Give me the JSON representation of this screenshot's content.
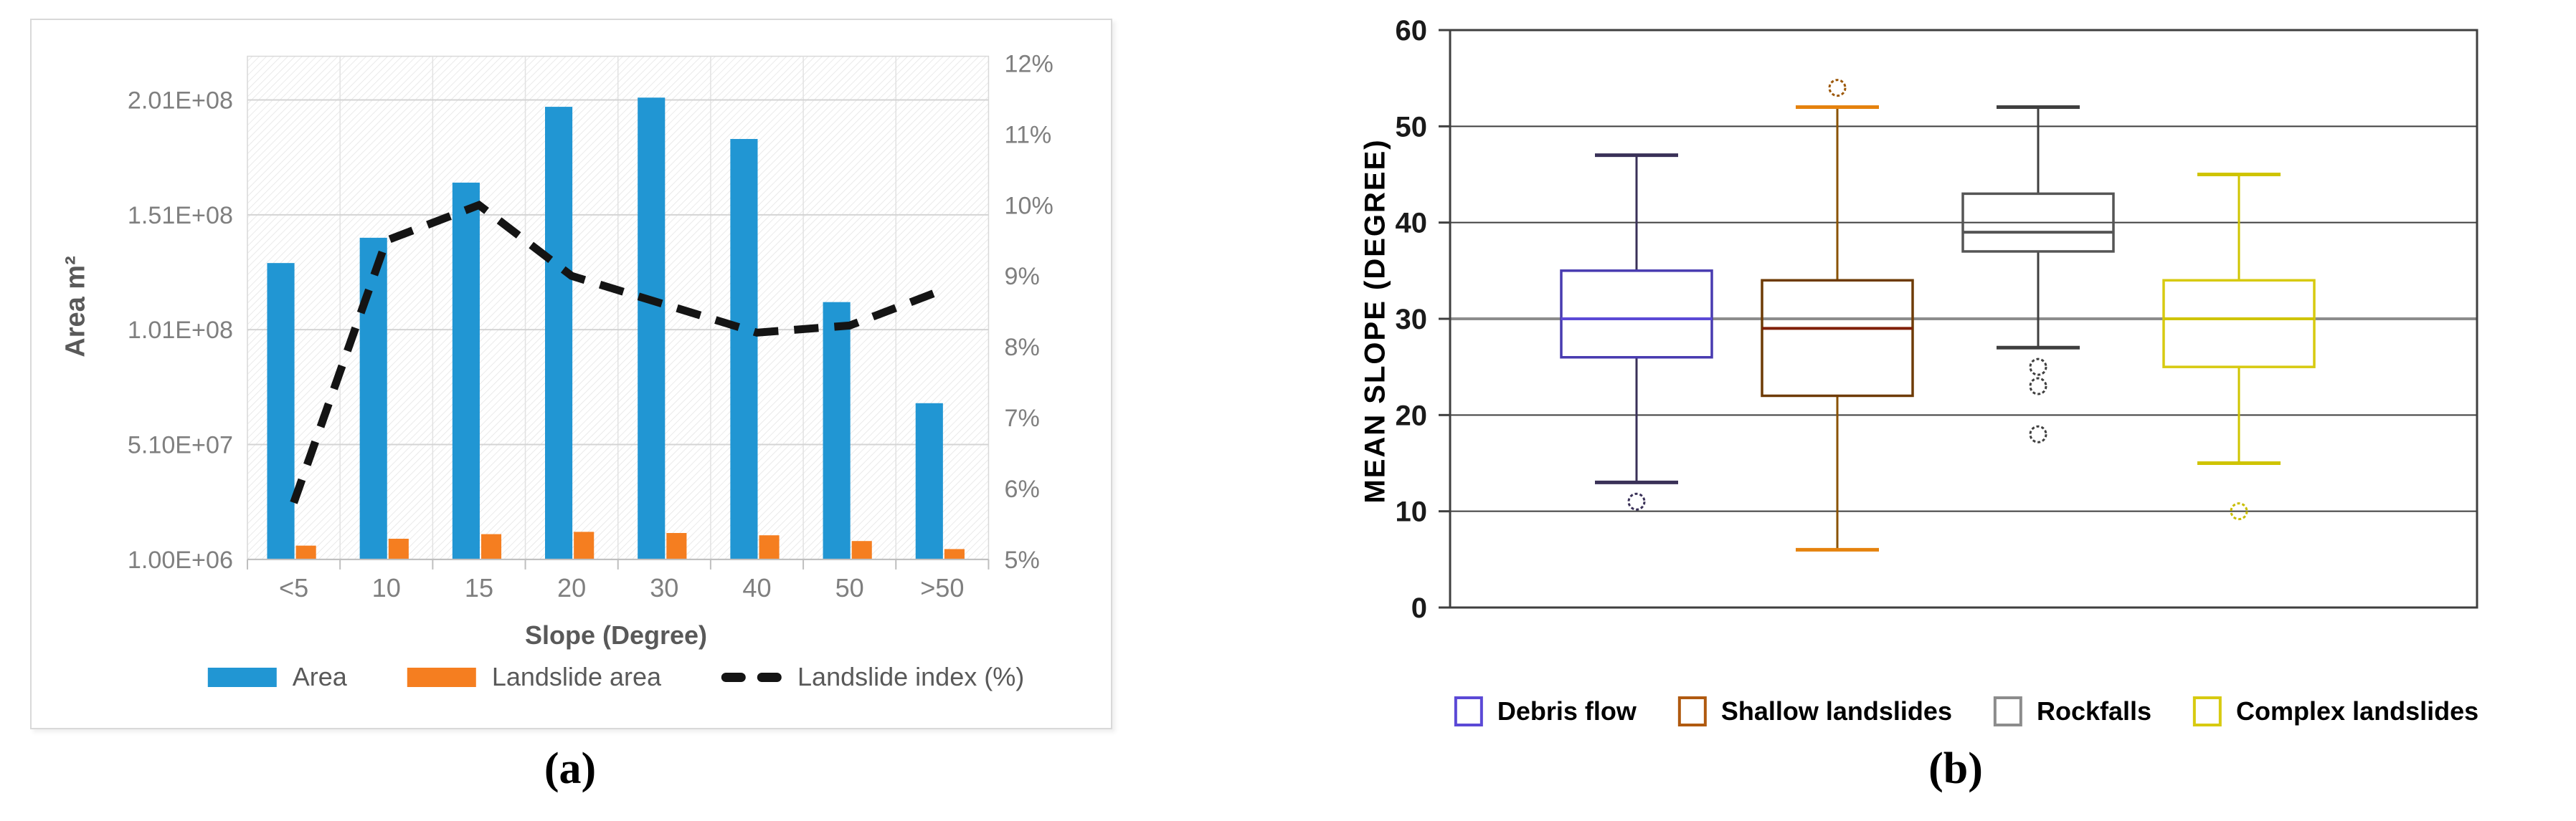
{
  "figure": {
    "caption_a": "(a)",
    "caption_b": "(b)"
  },
  "chart_data": [
    {
      "type": "bar",
      "subtype": "bar-line-combo",
      "panel": "a",
      "categories": [
        "<5",
        "10",
        "15",
        "20",
        "30",
        "40",
        "50",
        ">50"
      ],
      "series": [
        {
          "name": "Area",
          "type": "bar",
          "axis": "left",
          "color": "#2196D3",
          "values": [
            130000000,
            141000000,
            165000000,
            198000000,
            202000000,
            184000000,
            113000000,
            69000000
          ]
        },
        {
          "name": "Landslide area",
          "type": "bar",
          "axis": "left",
          "color": "#F57E20",
          "values": [
            7000000,
            10000000,
            12000000,
            13000000,
            12500000,
            11500000,
            9000000,
            5500000
          ]
        },
        {
          "name": "Landslide index (%)",
          "type": "line",
          "axis": "right",
          "color": "#141414",
          "dashed": true,
          "values": [
            5.8,
            9.5,
            10.0,
            9.0,
            8.6,
            8.2,
            8.3,
            8.8
          ]
        }
      ],
      "left_axis": {
        "title": "Area m²",
        "min": 1000000,
        "max": 220000000,
        "tick_values": [
          1000000,
          51000000,
          101000000,
          151000000,
          201000000
        ],
        "tick_labels": [
          "1.00E+06",
          "5.10E+07",
          "1.01E+08",
          "1.51E+08",
          "2.01E+08"
        ]
      },
      "right_axis": {
        "min": 5,
        "max": 12.1,
        "tick_values": [
          5,
          6,
          7,
          8,
          9,
          10,
          11,
          12
        ],
        "tick_labels": [
          "5%",
          "6%",
          "7%",
          "8%",
          "9%",
          "10%",
          "11%",
          "12%"
        ]
      },
      "x_axis": {
        "title": "Slope (Degree)"
      },
      "grid": true
    },
    {
      "type": "boxplot",
      "panel": "b",
      "y_axis": {
        "title": "MEAN SLOPE (DEGREE)",
        "min": 0,
        "max": 60,
        "tick_values": [
          0,
          10,
          20,
          30,
          40,
          50,
          60
        ],
        "tick_labels": [
          "0",
          "10",
          "20",
          "30",
          "40",
          "50",
          "60"
        ],
        "emphasized_gridline": 30
      },
      "series": [
        {
          "name": "Debris flow",
          "legend_color": "#5B49D6",
          "box_color": "#483BB0",
          "median_color": "#5B49D6",
          "whisker_color": "#3A3158",
          "cap_color": "#3A3158",
          "outlier_color": "#3A3158",
          "whisker_low": 13,
          "q1": 26,
          "median": 30,
          "q3": 35,
          "whisker_high": 47,
          "outliers": [
            11
          ]
        },
        {
          "name": "Shallow landslides",
          "legend_color": "#B05A10",
          "box_color": "#6E3B05",
          "median_color": "#801F05",
          "whisker_color": "#8A5200",
          "cap_color": "#E5820E",
          "outlier_color": "#9C5708",
          "whisker_low": 6,
          "q1": 22,
          "median": 29,
          "q3": 34,
          "whisker_high": 52,
          "outliers": [
            54
          ]
        },
        {
          "name": "Rockfalls",
          "legend_color": "#8C8C8C",
          "box_color": "#555555",
          "median_color": "#555555",
          "whisker_color": "#3F3F3F",
          "cap_color": "#3F3F3F",
          "outlier_color": "#3F3F3F",
          "whisker_low": 27,
          "q1": 37,
          "median": 39,
          "q3": 43,
          "whisker_high": 52,
          "outliers": [
            25,
            23,
            18
          ]
        },
        {
          "name": "Complex landslides",
          "legend_color": "#D7CA10",
          "box_color": "#D7CA10",
          "median_color": "#CFC400",
          "whisker_color": "#CFC400",
          "cap_color": "#CFC400",
          "outlier_color": "#C8BD00",
          "whisker_low": 15,
          "q1": 25,
          "median": 30,
          "q3": 34,
          "whisker_high": 45,
          "outliers": [
            10
          ]
        }
      ]
    }
  ]
}
